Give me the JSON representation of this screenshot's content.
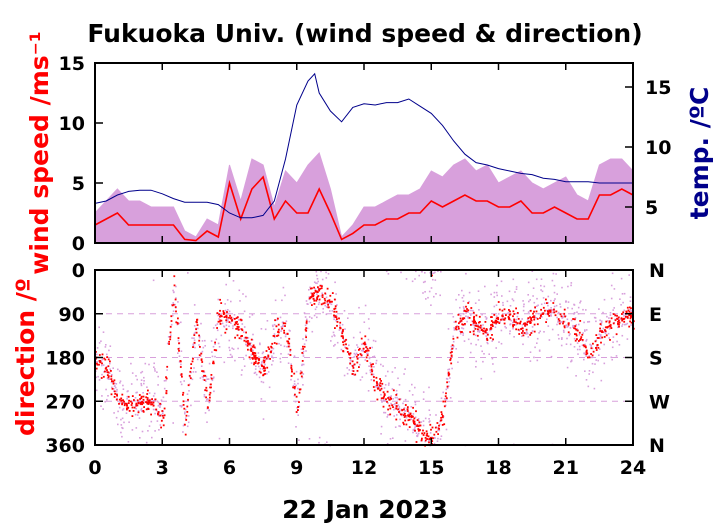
{
  "title": "Fukuoka Univ. (wind speed & direction)",
  "date_label": "22 Jan 2023",
  "colors": {
    "wind_gust": "#d8a0dc",
    "wind_mean": "#ff0000",
    "temperature": "#00008b",
    "axes": "#000000"
  },
  "chart_data": [
    {
      "type": "line",
      "xlim": [
        0,
        24
      ],
      "x_ticks": [
        "0",
        "3",
        "6",
        "9",
        "12",
        "15",
        "18",
        "21",
        "24"
      ],
      "ylabel": "wind speed /ms⁻¹",
      "ylim": [
        0,
        15
      ],
      "y_ticks": [
        "0",
        "5",
        "10",
        "15"
      ],
      "ylabel_right": "temp. /ºC",
      "ylim_right": [
        2,
        17
      ],
      "y_ticks_right": [
        "5",
        "10",
        "15"
      ],
      "series": [
        {
          "key": "gust",
          "x": [
            0,
            0.5,
            1,
            1.5,
            2,
            2.5,
            3,
            3.5,
            4,
            4.5,
            5,
            5.5,
            6,
            6.5,
            7,
            7.5,
            8,
            8.5,
            9,
            9.5,
            10,
            10.5,
            11,
            11.5,
            12,
            12.5,
            13,
            13.5,
            14,
            14.5,
            15,
            15.5,
            16,
            16.5,
            17,
            17.5,
            18,
            18.5,
            19,
            19.5,
            20,
            20.5,
            21,
            21.5,
            22,
            22.5,
            23,
            23.5,
            24
          ],
          "values": [
            2.5,
            3.5,
            4.5,
            3.5,
            3.5,
            3.0,
            3.0,
            3.0,
            1.0,
            0.5,
            2.0,
            1.5,
            6.5,
            3.5,
            7.0,
            6.5,
            3.0,
            6.0,
            5.0,
            6.5,
            7.5,
            4.5,
            0.5,
            1.5,
            3.0,
            3.0,
            3.5,
            4.0,
            4.0,
            4.5,
            6.0,
            5.5,
            6.5,
            7.0,
            6.0,
            6.5,
            5.0,
            5.5,
            6.0,
            5.0,
            4.5,
            5.0,
            5.5,
            4.0,
            3.5,
            6.5,
            7.0,
            7.0,
            6.0
          ]
        },
        {
          "key": "mean",
          "x": [
            0,
            0.5,
            1,
            1.5,
            2,
            2.5,
            3,
            3.5,
            4,
            4.5,
            5,
            5.5,
            6,
            6.5,
            7,
            7.5,
            8,
            8.5,
            9,
            9.5,
            10,
            10.5,
            11,
            11.5,
            12,
            12.5,
            13,
            13.5,
            14,
            14.5,
            15,
            15.5,
            16,
            16.5,
            17,
            17.5,
            18,
            18.5,
            19,
            19.5,
            20,
            20.5,
            21,
            21.5,
            22,
            22.5,
            23,
            23.5,
            24
          ],
          "values": [
            1.5,
            2.0,
            2.5,
            1.5,
            1.5,
            1.5,
            1.5,
            1.5,
            0.3,
            0.2,
            1.0,
            0.5,
            5.0,
            2.0,
            4.5,
            5.5,
            2.0,
            3.5,
            2.5,
            2.5,
            4.5,
            2.5,
            0.3,
            0.8,
            1.5,
            1.5,
            2.0,
            2.0,
            2.5,
            2.5,
            3.5,
            3.0,
            3.5,
            4.0,
            3.5,
            3.5,
            3.0,
            3.0,
            3.5,
            2.5,
            2.5,
            3.0,
            2.5,
            2.0,
            2.0,
            4.0,
            4.0,
            4.5,
            4.0
          ]
        },
        {
          "key": "temperature",
          "axis": "right",
          "x": [
            0,
            0.5,
            1,
            1.5,
            2,
            2.5,
            3,
            3.5,
            4,
            4.5,
            5,
            5.5,
            6,
            6.5,
            7,
            7.5,
            8,
            8.5,
            9,
            9.5,
            9.8,
            10,
            10.5,
            11,
            11.5,
            12,
            12.5,
            13,
            13.5,
            14,
            14.5,
            15,
            15.5,
            16,
            16.5,
            17,
            17.5,
            18,
            18.5,
            19,
            19.5,
            20,
            20.5,
            21,
            21.5,
            22,
            22.5,
            23,
            23.5,
            24
          ],
          "values": [
            5.3,
            5.5,
            6.0,
            6.3,
            6.4,
            6.4,
            6.1,
            5.7,
            5.4,
            5.4,
            5.4,
            5.2,
            4.5,
            4.1,
            4.1,
            4.3,
            5.5,
            9.0,
            13.5,
            15.5,
            16.1,
            14.5,
            13.0,
            12.1,
            13.3,
            13.6,
            13.5,
            13.7,
            13.7,
            14.0,
            13.4,
            12.8,
            11.8,
            10.5,
            9.4,
            8.7,
            8.5,
            8.2,
            8.0,
            7.8,
            7.7,
            7.4,
            7.3,
            7.1,
            7.1,
            7.1,
            7.0,
            7.0,
            7.0,
            7.0
          ]
        }
      ]
    },
    {
      "type": "scatter",
      "xlim": [
        0,
        24
      ],
      "x_ticks": [
        "0",
        "3",
        "6",
        "9",
        "12",
        "15",
        "18",
        "21",
        "24"
      ],
      "ylabel": "direction /º",
      "ylim": [
        360,
        0
      ],
      "y_ticks": [
        "0",
        "90",
        "180",
        "270",
        "360"
      ],
      "y_ticks_right": [
        "N",
        "E",
        "S",
        "W",
        "N"
      ],
      "series": [
        {
          "key": "direction",
          "x": [
            0,
            0.5,
            1,
            1.5,
            2,
            2.5,
            3,
            3.5,
            4,
            4.5,
            5,
            5.5,
            6,
            6.5,
            7,
            7.5,
            8,
            8.5,
            9,
            9.5,
            10,
            10.5,
            11,
            11.5,
            12,
            12.5,
            13,
            13.5,
            14,
            14.5,
            15,
            15.5,
            16,
            16.5,
            17,
            17.5,
            18,
            18.5,
            19,
            19.5,
            20,
            20.5,
            21,
            21.5,
            22,
            22.5,
            23,
            23.5,
            24
          ],
          "values": [
            180,
            200,
            260,
            280,
            270,
            270,
            310,
            30,
            320,
            100,
            280,
            90,
            100,
            120,
            170,
            200,
            130,
            110,
            290,
            60,
            40,
            70,
            130,
            200,
            150,
            230,
            270,
            280,
            300,
            330,
            350,
            300,
            120,
            90,
            110,
            130,
            90,
            100,
            110,
            100,
            90,
            80,
            100,
            120,
            180,
            130,
            110,
            100,
            90
          ]
        }
      ]
    }
  ]
}
